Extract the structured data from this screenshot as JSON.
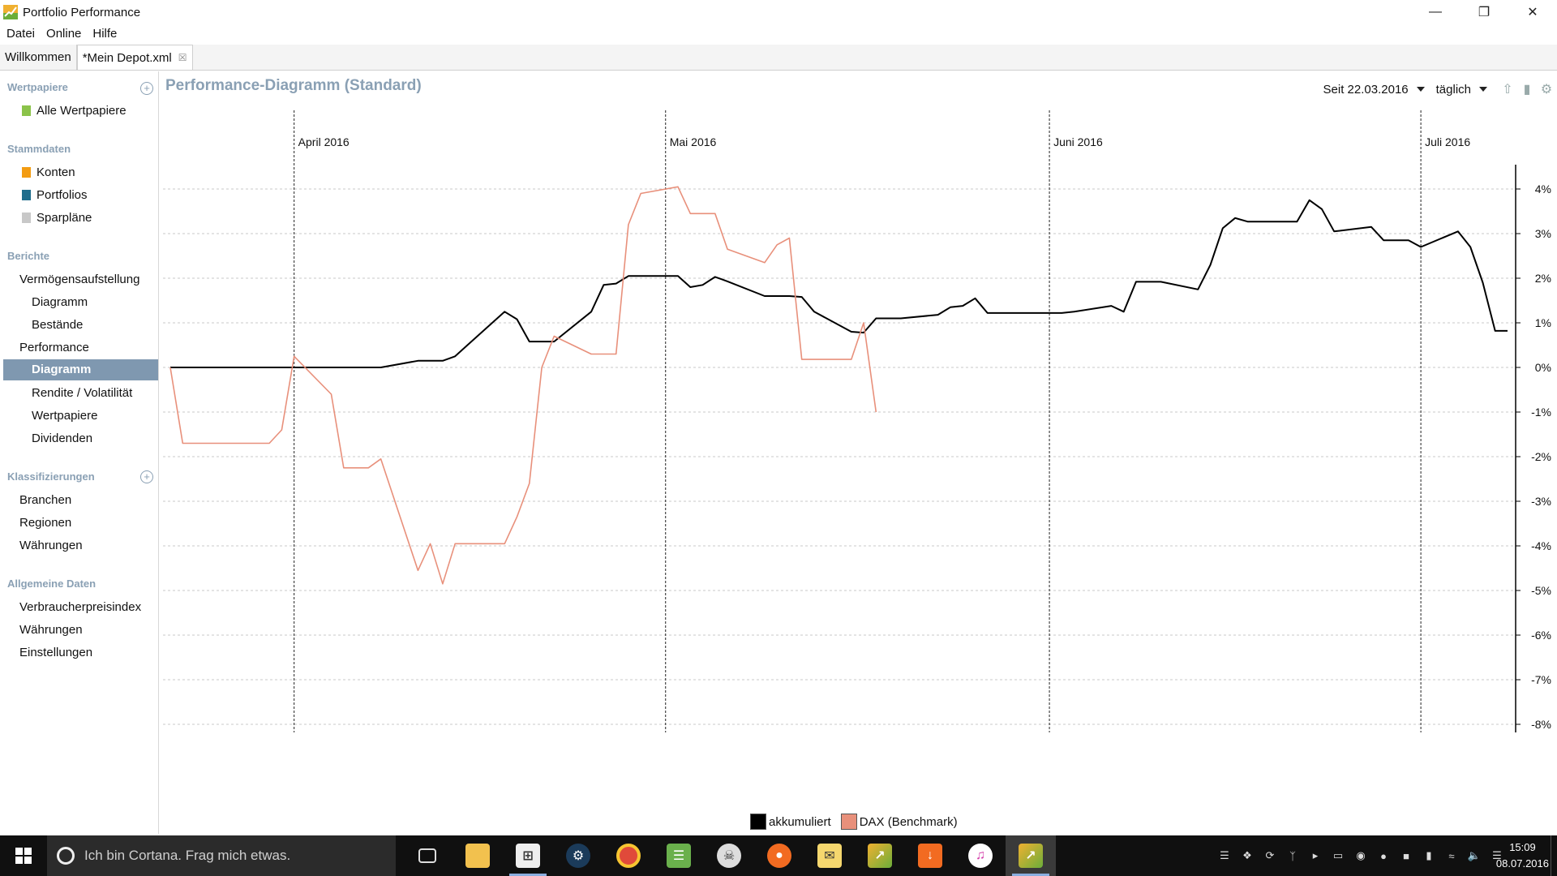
{
  "window": {
    "title": "Portfolio Performance"
  },
  "menu": [
    "Datei",
    "Online",
    "Hilfe"
  ],
  "tabs": [
    {
      "label": "Willkommen",
      "active": false
    },
    {
      "label": "*Mein Depot.xml",
      "active": true
    }
  ],
  "sidebar": {
    "wertpapiere": {
      "heading": "Wertpapiere",
      "items": [
        "Alle Wertpapiere"
      ]
    },
    "stammdaten": {
      "heading": "Stammdaten",
      "items": [
        "Konten",
        "Portfolios",
        "Sparpläne"
      ]
    },
    "berichte": {
      "heading": "Berichte",
      "items": [
        "Vermögensaufstellung",
        "Diagramm",
        "Bestände",
        "Performance",
        "Diagramm",
        "Rendite / Volatilität",
        "Wertpapiere",
        "Dividenden"
      ]
    },
    "klassifizierungen": {
      "heading": "Klassifizierungen",
      "items": [
        "Branchen",
        "Regionen",
        "Währungen"
      ]
    },
    "allgemein": {
      "heading": "Allgemeine Daten",
      "items": [
        "Verbraucherpreisindex",
        "Währungen",
        "Einstellungen"
      ]
    }
  },
  "main": {
    "title": "Performance-Diagramm (Standard)",
    "period": "Seit 22.03.2016",
    "interval": "täglich"
  },
  "colors": {
    "accent": "#7f98b0",
    "benchmark": "#e8907b",
    "series": "#000000"
  },
  "chart_data": {
    "type": "line",
    "title": "Performance-Diagramm (Standard)",
    "x_months": [
      {
        "label": "April 2016",
        "date": "2016-04-01"
      },
      {
        "label": "Mai 2016",
        "date": "2016-05-01"
      },
      {
        "label": "Juni 2016",
        "date": "2016-06-01"
      },
      {
        "label": "Juli 2016",
        "date": "2016-07-01"
      }
    ],
    "xlim": [
      "2016-03-22",
      "2016-07-08"
    ],
    "ylim": [
      -8,
      4.3
    ],
    "y_ticks": [
      4,
      3,
      2,
      1,
      0,
      -1,
      -2,
      -3,
      -4,
      -5,
      -6,
      -7,
      -8
    ],
    "y_tick_labels": [
      "4%",
      "3%",
      "2%",
      "1%",
      "0%",
      "-1%",
      "-2%",
      "-3%",
      "-4%",
      "-5%",
      "-6%",
      "-7%",
      "-8%"
    ],
    "grid": true,
    "legend_position": "bottom-center",
    "series": [
      {
        "name": "akkumuliert",
        "color": "#000000",
        "points": [
          [
            "2016-03-22",
            0
          ],
          [
            "2016-03-23",
            0
          ],
          [
            "2016-03-24",
            0
          ],
          [
            "2016-03-29",
            0
          ],
          [
            "2016-03-30",
            0
          ],
          [
            "2016-03-31",
            0
          ],
          [
            "2016-04-01",
            0
          ],
          [
            "2016-04-04",
            0
          ],
          [
            "2016-04-05",
            0
          ],
          [
            "2016-04-06",
            0
          ],
          [
            "2016-04-07",
            0
          ],
          [
            "2016-04-08",
            0
          ],
          [
            "2016-04-11",
            0.15
          ],
          [
            "2016-04-12",
            0.15
          ],
          [
            "2016-04-13",
            0.15
          ],
          [
            "2016-04-14",
            0.25
          ],
          [
            "2016-04-15",
            0.5
          ],
          [
            "2016-04-18",
            1.25
          ],
          [
            "2016-04-19",
            1.08
          ],
          [
            "2016-04-20",
            0.58
          ],
          [
            "2016-04-21",
            0.58
          ],
          [
            "2016-04-22",
            0.58
          ],
          [
            "2016-04-25",
            1.25
          ],
          [
            "2016-04-26",
            1.85
          ],
          [
            "2016-04-27",
            1.88
          ],
          [
            "2016-04-28",
            2.05
          ],
          [
            "2016-04-29",
            2.05
          ],
          [
            "2016-05-02",
            2.05
          ],
          [
            "2016-05-03",
            1.8
          ],
          [
            "2016-05-04",
            1.85
          ],
          [
            "2016-05-05",
            2.03
          ],
          [
            "2016-05-06",
            1.93
          ],
          [
            "2016-05-09",
            1.6
          ],
          [
            "2016-05-10",
            1.6
          ],
          [
            "2016-05-11",
            1.6
          ],
          [
            "2016-05-12",
            1.58
          ],
          [
            "2016-05-13",
            1.25
          ],
          [
            "2016-05-16",
            0.8
          ],
          [
            "2016-05-17",
            0.78
          ],
          [
            "2016-05-18",
            1.1
          ],
          [
            "2016-05-19",
            1.1
          ],
          [
            "2016-05-20",
            1.1
          ],
          [
            "2016-05-23",
            1.18
          ],
          [
            "2016-05-24",
            1.35
          ],
          [
            "2016-05-25",
            1.38
          ],
          [
            "2016-05-26",
            1.55
          ],
          [
            "2016-05-27",
            1.22
          ],
          [
            "2016-05-30",
            1.22
          ],
          [
            "2016-05-31",
            1.22
          ],
          [
            "2016-06-01",
            1.22
          ],
          [
            "2016-06-02",
            1.22
          ],
          [
            "2016-06-03",
            1.25
          ],
          [
            "2016-06-06",
            1.38
          ],
          [
            "2016-06-07",
            1.25
          ],
          [
            "2016-06-08",
            1.92
          ],
          [
            "2016-06-09",
            1.92
          ],
          [
            "2016-06-10",
            1.92
          ],
          [
            "2016-06-13",
            1.75
          ],
          [
            "2016-06-14",
            2.3
          ],
          [
            "2016-06-15",
            3.12
          ],
          [
            "2016-06-16",
            3.35
          ],
          [
            "2016-06-17",
            3.27
          ],
          [
            "2016-06-20",
            3.27
          ],
          [
            "2016-06-21",
            3.27
          ],
          [
            "2016-06-22",
            3.75
          ],
          [
            "2016-06-23",
            3.55
          ],
          [
            "2016-06-24",
            3.05
          ],
          [
            "2016-06-27",
            3.15
          ],
          [
            "2016-06-28",
            2.85
          ],
          [
            "2016-06-29",
            2.85
          ],
          [
            "2016-06-30",
            2.85
          ],
          [
            "2016-07-01",
            2.7
          ],
          [
            "2016-07-04",
            3.05
          ],
          [
            "2016-07-05",
            2.7
          ],
          [
            "2016-07-06",
            1.9
          ],
          [
            "2016-07-07",
            0.82
          ],
          [
            "2016-07-08",
            0.82
          ]
        ]
      },
      {
        "name": "DAX (Benchmark)",
        "color": "#e8907b",
        "points": [
          [
            "2016-03-22",
            0
          ],
          [
            "2016-03-23",
            -1.7
          ],
          [
            "2016-03-24",
            -1.7
          ],
          [
            "2016-03-29",
            -1.7
          ],
          [
            "2016-03-30",
            -1.7
          ],
          [
            "2016-03-31",
            -1.4
          ],
          [
            "2016-04-01",
            0.25
          ],
          [
            "2016-04-04",
            -0.6
          ],
          [
            "2016-04-05",
            -2.25
          ],
          [
            "2016-04-06",
            -2.25
          ],
          [
            "2016-04-07",
            -2.25
          ],
          [
            "2016-04-08",
            -2.05
          ],
          [
            "2016-04-11",
            -4.55
          ],
          [
            "2016-04-12",
            -3.95
          ],
          [
            "2016-04-13",
            -4.85
          ],
          [
            "2016-04-14",
            -3.95
          ],
          [
            "2016-04-15",
            -3.95
          ],
          [
            "2016-04-18",
            -3.95
          ],
          [
            "2016-04-19",
            -3.35
          ],
          [
            "2016-04-20",
            -2.6
          ],
          [
            "2016-04-21",
            0
          ],
          [
            "2016-04-22",
            0.7
          ],
          [
            "2016-04-25",
            0.3
          ],
          [
            "2016-04-26",
            0.3
          ],
          [
            "2016-04-27",
            0.3
          ],
          [
            "2016-04-28",
            3.2
          ],
          [
            "2016-04-29",
            3.9
          ],
          [
            "2016-05-02",
            4.05
          ],
          [
            "2016-05-03",
            3.45
          ],
          [
            "2016-05-04",
            3.45
          ],
          [
            "2016-05-05",
            3.45
          ],
          [
            "2016-05-06",
            2.65
          ],
          [
            "2016-05-09",
            2.35
          ],
          [
            "2016-05-10",
            2.75
          ],
          [
            "2016-05-11",
            2.9
          ],
          [
            "2016-05-12",
            0.18
          ],
          [
            "2016-05-13",
            0.18
          ],
          [
            "2016-05-16",
            0.18
          ],
          [
            "2016-05-17",
            1.0
          ],
          [
            "2016-05-18",
            -1.0
          ]
        ]
      }
    ]
  },
  "taskbar": {
    "search_placeholder": "Ich bin Cortana. Frag mich etwas.",
    "time": "15:09",
    "date": "08.07.2016"
  }
}
